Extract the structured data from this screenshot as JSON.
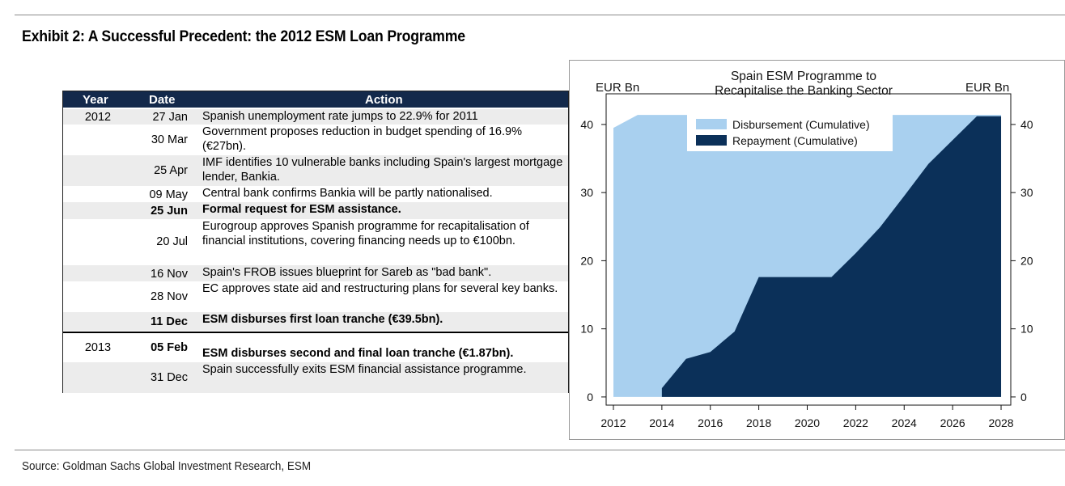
{
  "exhibit": {
    "title": "Exhibit 2: A Successful Precedent: the 2012 ESM Loan Programme",
    "source": "Source: Goldman Sachs Global Investment Research, ESM"
  },
  "timeline": {
    "headers": {
      "year": "Year",
      "date": "Date",
      "action": "Action"
    },
    "rows": [
      {
        "year": "2012",
        "date": "27 Jan",
        "action": "Spanish unemployment rate jumps to 22.9% for 2011",
        "bold": false
      },
      {
        "year": "",
        "date": "30 Mar",
        "action": "Government proposes reduction in budget spending of 16.9% (€27bn).",
        "bold": false
      },
      {
        "year": "",
        "date": "25 Apr",
        "action": "IMF identifies 10 vulnerable banks including Spain's largest mortgage lender, Bankia.",
        "bold": false
      },
      {
        "year": "",
        "date": "09 May",
        "action": "Central bank confirms Bankia will be partly nationalised.",
        "bold": false
      },
      {
        "year": "",
        "date": "25 Jun",
        "action": "Formal request for ESM assistance.",
        "bold": true
      },
      {
        "year": "",
        "date": "20 Jul",
        "action": "Eurogroup approves Spanish programme for recapitalisation of financial institutions, covering financing needs up to €100bn.",
        "bold": false
      },
      {
        "year": "",
        "date": "16 Nov",
        "action": "Spain's FROB issues blueprint for Sareb as \"bad bank\".",
        "bold": false
      },
      {
        "year": "",
        "date": "28 Nov",
        "action": "EC approves state aid and restructuring plans for several key banks.",
        "bold": false
      },
      {
        "year": "",
        "date": "11 Dec",
        "action": "ESM disburses first loan tranche (€39.5bn).",
        "bold": true
      },
      {
        "year": "2013",
        "date": "05 Feb",
        "action": "ESM disburses second and final loan tranche (€1.87bn).",
        "bold": true
      },
      {
        "year": "",
        "date": "31 Dec",
        "action": "Spain successfully exits ESM financial assistance programme.",
        "bold": false
      }
    ]
  },
  "chart_data": {
    "type": "area",
    "title": "Spain ESM Programme to Recapitalise the Banking Sector",
    "ylabel_left": "EUR Bn",
    "ylabel_right": "EUR Bn",
    "xlim": [
      2011.7,
      2028.4
    ],
    "ylim": [
      -1.2,
      44.5
    ],
    "xticks": [
      2012,
      2014,
      2016,
      2018,
      2020,
      2022,
      2024,
      2026,
      2028
    ],
    "yticks": [
      0,
      10,
      20,
      30,
      40
    ],
    "legend_position": "top-center",
    "colors": {
      "disbursement": "#a9d0ef",
      "repayment": "#0b3059"
    },
    "series": [
      {
        "name": "Disbursement (Cumulative)",
        "x": [
          2012,
          2013,
          2028
        ],
        "values": [
          39.5,
          41.4,
          41.4
        ]
      },
      {
        "name": "Repayment (Cumulative)",
        "x": [
          2014,
          2015,
          2016,
          2017,
          2018,
          2019,
          2020,
          2021,
          2022,
          2023,
          2024,
          2025,
          2026,
          2027,
          2028
        ],
        "values": [
          1.3,
          5.6,
          6.6,
          9.6,
          17.6,
          17.6,
          17.6,
          17.6,
          21.1,
          24.9,
          29.5,
          34.2,
          37.7,
          41.2,
          41.2
        ]
      }
    ]
  }
}
